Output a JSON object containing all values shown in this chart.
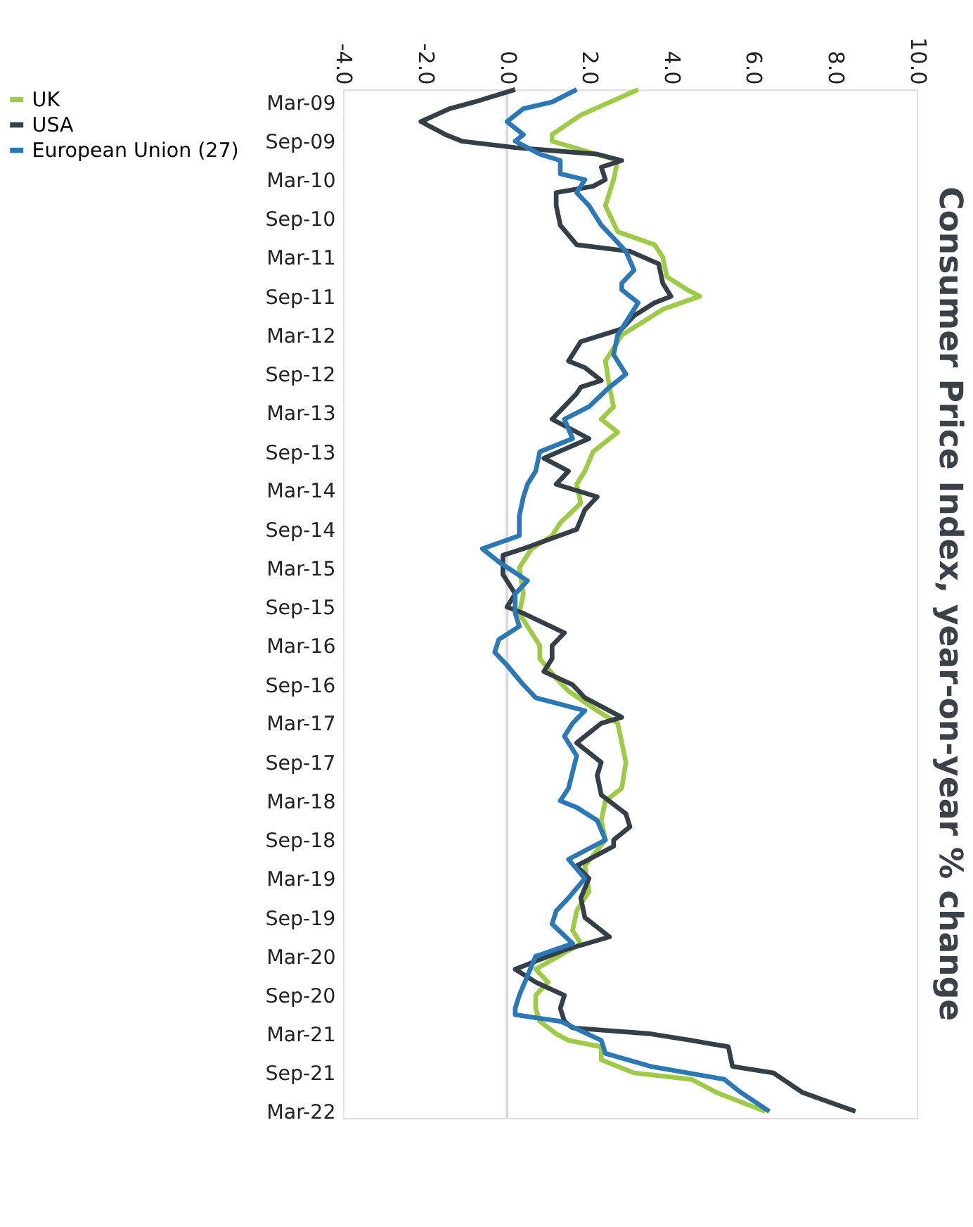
{
  "chart_data": {
    "type": "line",
    "orientation": "horizontal",
    "title": "Consumer Price Index, year-on-year % change",
    "xlim": [
      -4,
      10
    ],
    "xticks": [
      {
        "value": -4,
        "label": "-4.0"
      },
      {
        "value": -2,
        "label": "-2.0"
      },
      {
        "value": 0,
        "label": "0.0"
      },
      {
        "value": 2,
        "label": "2.0"
      },
      {
        "value": 4,
        "label": "4.0"
      },
      {
        "value": 6,
        "label": "6.0"
      },
      {
        "value": 8,
        "label": "8.0"
      },
      {
        "value": 10,
        "label": "10.0"
      }
    ],
    "yticks": [
      {
        "value": "2009-03",
        "label": "Mar-09"
      },
      {
        "value": "2009-09",
        "label": "Sep-09"
      },
      {
        "value": "2010-03",
        "label": "Mar-10"
      },
      {
        "value": "2010-09",
        "label": "Sep-10"
      },
      {
        "value": "2011-03",
        "label": "Mar-11"
      },
      {
        "value": "2011-09",
        "label": "Sep-11"
      },
      {
        "value": "2012-03",
        "label": "Mar-12"
      },
      {
        "value": "2012-09",
        "label": "Sep-12"
      },
      {
        "value": "2013-03",
        "label": "Mar-13"
      },
      {
        "value": "2013-09",
        "label": "Sep-13"
      },
      {
        "value": "2014-03",
        "label": "Mar-14"
      },
      {
        "value": "2014-09",
        "label": "Sep-14"
      },
      {
        "value": "2015-03",
        "label": "Mar-15"
      },
      {
        "value": "2015-09",
        "label": "Sep-15"
      },
      {
        "value": "2016-03",
        "label": "Mar-16"
      },
      {
        "value": "2016-09",
        "label": "Sep-16"
      },
      {
        "value": "2017-03",
        "label": "Mar-17"
      },
      {
        "value": "2017-09",
        "label": "Sep-17"
      },
      {
        "value": "2018-03",
        "label": "Mar-18"
      },
      {
        "value": "2018-09",
        "label": "Sep-18"
      },
      {
        "value": "2019-03",
        "label": "Mar-19"
      },
      {
        "value": "2019-09",
        "label": "Sep-19"
      },
      {
        "value": "2020-03",
        "label": "Mar-20"
      },
      {
        "value": "2020-09",
        "label": "Sep-20"
      },
      {
        "value": "2021-03",
        "label": "Mar-21"
      },
      {
        "value": "2021-09",
        "label": "Sep-21"
      },
      {
        "value": "2022-03",
        "label": "Mar-22"
      }
    ],
    "ylim": [
      "2022-04",
      "2009-01"
    ],
    "grid": false,
    "legend": "left",
    "marker": "none",
    "line_style": "solid",
    "ref_lines": [
      {
        "axis": "x",
        "value": 0,
        "color": "#d9d9d9"
      }
    ],
    "series": [
      {
        "name": "UK",
        "color": "#9dcb45",
        "x": [
          "2009-01",
          "2009-05",
          "2009-08",
          "2009-09",
          "2009-12",
          "2010-03",
          "2010-07",
          "2010-11",
          "2011-01",
          "2011-03",
          "2011-06",
          "2011-08",
          "2011-09",
          "2011-11",
          "2012-01",
          "2012-03",
          "2012-07",
          "2012-11",
          "2013-02",
          "2013-04",
          "2013-06",
          "2013-09",
          "2013-12",
          "2014-02",
          "2014-05",
          "2014-08",
          "2014-10",
          "2014-12",
          "2015-03",
          "2015-07",
          "2015-10",
          "2015-12",
          "2016-03",
          "2016-05",
          "2016-08",
          "2016-10",
          "2017-01",
          "2017-03",
          "2017-06",
          "2017-09",
          "2018-01",
          "2018-03",
          "2018-06",
          "2018-09",
          "2019-01",
          "2019-05",
          "2019-08",
          "2019-11",
          "2020-01",
          "2020-05",
          "2020-07",
          "2020-09",
          "2020-11",
          "2021-01",
          "2021-03",
          "2021-04",
          "2021-05",
          "2021-07",
          "2021-09",
          "2021-10",
          "2021-12",
          "2022-03"
        ],
        "values": [
          3.2,
          1.8,
          1.1,
          1.1,
          2.7,
          2.6,
          2.4,
          2.7,
          3.6,
          3.8,
          3.9,
          4.4,
          4.7,
          3.8,
          3.3,
          2.8,
          2.4,
          2.5,
          2.6,
          2.3,
          2.7,
          2.1,
          1.9,
          1.7,
          1.8,
          1.3,
          1.1,
          0.6,
          0.3,
          0.4,
          0.3,
          0.5,
          0.8,
          0.8,
          1.2,
          1.5,
          2.2,
          2.7,
          2.8,
          2.9,
          2.8,
          2.4,
          2.3,
          2.4,
          1.9,
          2.0,
          1.7,
          1.6,
          1.8,
          0.7,
          1.0,
          0.7,
          0.7,
          0.8,
          1.2,
          1.5,
          2.3,
          2.3,
          3.1,
          4.5,
          5.1,
          6.3
        ]
      },
      {
        "name": "USA",
        "color": "#353f47",
        "x": [
          "2009-01",
          "2009-03",
          "2009-04",
          "2009-06",
          "2009-08",
          "2009-09",
          "2009-10",
          "2009-11",
          "2009-12",
          "2010-01",
          "2010-03",
          "2010-04",
          "2010-05",
          "2010-07",
          "2010-10",
          "2011-01",
          "2011-02",
          "2011-04",
          "2011-07",
          "2011-09",
          "2011-10",
          "2011-12",
          "2012-02",
          "2012-04",
          "2012-07",
          "2012-08",
          "2012-10",
          "2012-11",
          "2012-12",
          "2013-04",
          "2013-07",
          "2013-10",
          "2013-12",
          "2014-02",
          "2014-04",
          "2014-06",
          "2014-09",
          "2014-12",
          "2015-01",
          "2015-04",
          "2015-07",
          "2015-09",
          "2015-10",
          "2016-01",
          "2016-03",
          "2016-05",
          "2016-07",
          "2016-09",
          "2016-11",
          "2017-02",
          "2017-03",
          "2017-06",
          "2017-09",
          "2017-11",
          "2018-02",
          "2018-05",
          "2018-07",
          "2018-09",
          "2018-10",
          "2019-01",
          "2019-03",
          "2019-06",
          "2019-09",
          "2019-12",
          "2020-02",
          "2020-05",
          "2020-07",
          "2020-09",
          "2020-11",
          "2021-01",
          "2021-02",
          "2021-03",
          "2021-04",
          "2021-05",
          "2021-08",
          "2021-09",
          "2021-12",
          "2022-02",
          "2022-03"
        ],
        "values": [
          0.2,
          -0.8,
          -1.4,
          -2.1,
          -1.5,
          -1.1,
          0.2,
          2.2,
          2.8,
          2.3,
          2.4,
          2.1,
          1.2,
          1.2,
          1.3,
          1.7,
          3.0,
          3.7,
          3.8,
          4.0,
          3.6,
          3.1,
          2.8,
          1.8,
          1.5,
          1.9,
          2.3,
          1.8,
          1.7,
          1.1,
          2.0,
          0.9,
          1.5,
          1.2,
          2.2,
          1.9,
          1.7,
          0.4,
          -0.1,
          -0.1,
          0.2,
          0.0,
          0.4,
          1.4,
          1.1,
          1.1,
          0.9,
          1.6,
          1.9,
          2.8,
          2.3,
          1.7,
          2.3,
          2.2,
          2.3,
          2.9,
          3.0,
          2.6,
          2.6,
          1.7,
          2.0,
          1.8,
          1.9,
          2.5,
          1.4,
          0.2,
          0.7,
          1.4,
          1.3,
          1.4,
          1.6,
          3.5,
          4.5,
          5.4,
          5.5,
          6.5,
          7.2,
          8.1,
          8.5
        ]
      },
      {
        "name": "European Union (27)",
        "color": "#2b78b9",
        "x": [
          "2009-01",
          "2009-03",
          "2009-04",
          "2009-06",
          "2009-08",
          "2009-09",
          "2009-11",
          "2009-12",
          "2010-02",
          "2010-03",
          "2010-05",
          "2010-07",
          "2010-10",
          "2010-12",
          "2011-02",
          "2011-05",
          "2011-07",
          "2011-08",
          "2011-10",
          "2012-01",
          "2012-03",
          "2012-06",
          "2012-09",
          "2012-11",
          "2013-02",
          "2013-04",
          "2013-07",
          "2013-09",
          "2013-12",
          "2014-02",
          "2014-04",
          "2014-07",
          "2014-10",
          "2014-12",
          "2015-02",
          "2015-05",
          "2015-07",
          "2015-10",
          "2015-12",
          "2016-02",
          "2016-04",
          "2016-06",
          "2016-09",
          "2016-11",
          "2017-01",
          "2017-03",
          "2017-05",
          "2017-08",
          "2018-01",
          "2018-03",
          "2018-04",
          "2018-06",
          "2018-09",
          "2018-12",
          "2019-03",
          "2019-06",
          "2019-08",
          "2019-10",
          "2020-01",
          "2020-03",
          "2020-06",
          "2020-09",
          "2020-11",
          "2020-12",
          "2021-01",
          "2021-04",
          "2021-06",
          "2021-08",
          "2021-10",
          "2021-12",
          "2022-03"
        ],
        "values": [
          1.7,
          1.1,
          0.4,
          0.0,
          0.4,
          0.2,
          0.8,
          1.3,
          1.3,
          1.9,
          1.7,
          2.0,
          2.3,
          2.6,
          2.9,
          3.1,
          2.8,
          2.8,
          3.2,
          2.9,
          2.7,
          2.6,
          2.9,
          2.5,
          2.0,
          1.4,
          1.6,
          0.8,
          0.7,
          0.5,
          0.4,
          0.3,
          0.3,
          -0.6,
          -0.2,
          0.5,
          0.2,
          0.2,
          0.3,
          -0.2,
          -0.3,
          0.0,
          0.4,
          0.7,
          1.9,
          1.6,
          1.4,
          1.7,
          1.5,
          1.3,
          1.7,
          2.2,
          2.4,
          1.5,
          1.9,
          1.5,
          1.2,
          1.1,
          1.6,
          0.7,
          0.5,
          0.3,
          0.2,
          0.2,
          1.3,
          2.3,
          2.4,
          3.5,
          5.3,
          5.7,
          6.4
        ]
      }
    ]
  }
}
